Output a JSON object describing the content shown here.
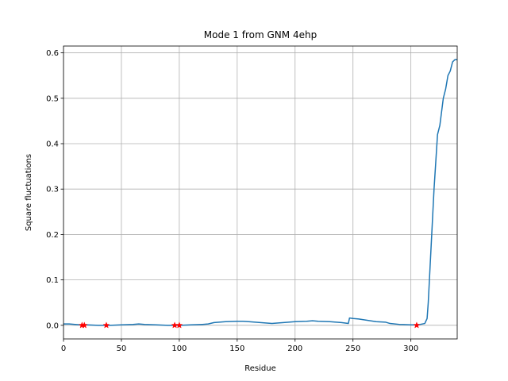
{
  "chart_data": {
    "type": "line",
    "title": "Mode 1 from GNM 4ehp",
    "xlabel": "Residue",
    "ylabel": "Square fluctuations",
    "xlim": [
      0,
      340
    ],
    "ylim": [
      -0.03,
      0.615
    ],
    "xticks": [
      0,
      50,
      100,
      150,
      200,
      250,
      300
    ],
    "yticks": [
      0.0,
      0.1,
      0.2,
      0.3,
      0.4,
      0.5,
      0.6
    ],
    "xtick_labels": [
      "0",
      "50",
      "100",
      "150",
      "200",
      "250",
      "300"
    ],
    "ytick_labels": [
      "0.0",
      "0.1",
      "0.2",
      "0.3",
      "0.4",
      "0.5",
      "0.6"
    ],
    "grid": true,
    "line_color": "#1f77b4",
    "marker_color": "#ff0000",
    "series": [
      {
        "x": [
          0,
          5,
          10,
          15,
          20,
          30,
          40,
          50,
          60,
          65,
          70,
          80,
          90,
          96,
          100,
          110,
          120,
          125,
          130,
          140,
          150,
          155,
          160,
          170,
          180,
          190,
          200,
          210,
          215,
          220,
          230,
          240,
          246,
          247,
          250,
          255,
          260,
          265,
          270,
          278,
          282,
          290,
          300,
          305,
          308,
          312,
          314,
          315,
          316,
          318,
          320,
          322,
          323,
          325,
          327,
          328,
          330,
          332,
          334,
          336,
          338,
          340
        ],
        "y": [
          0.003,
          0.003,
          0.002,
          0.001,
          0.001,
          0.0,
          0.0,
          0.001,
          0.002,
          0.003,
          0.002,
          0.001,
          0.0,
          0.0,
          0.0,
          0.001,
          0.002,
          0.003,
          0.006,
          0.008,
          0.009,
          0.009,
          0.008,
          0.006,
          0.004,
          0.006,
          0.008,
          0.009,
          0.01,
          0.009,
          0.008,
          0.006,
          0.004,
          0.016,
          0.015,
          0.014,
          0.012,
          0.01,
          0.008,
          0.007,
          0.004,
          0.002,
          0.001,
          0.001,
          0.002,
          0.004,
          0.015,
          0.05,
          0.1,
          0.2,
          0.3,
          0.38,
          0.42,
          0.44,
          0.48,
          0.5,
          0.52,
          0.55,
          0.56,
          0.58,
          0.585,
          0.585
        ]
      }
    ],
    "markers": {
      "x": [
        16,
        18,
        37,
        96,
        100,
        305
      ],
      "y": [
        0,
        0,
        0,
        0,
        0,
        0
      ]
    }
  }
}
